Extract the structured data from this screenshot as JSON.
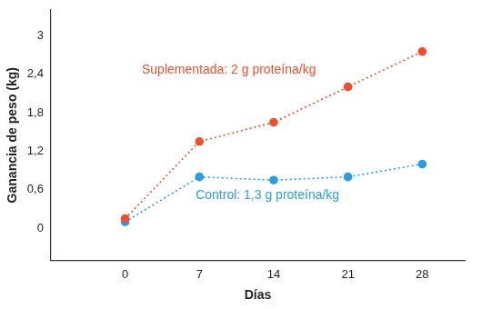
{
  "chart_data": {
    "type": "line",
    "x_label": "Días",
    "y_label": "Ganancia de peso (kg)",
    "x": [
      0,
      7,
      14,
      21,
      28
    ],
    "series": [
      {
        "name": "Suplementada: 2 g proteína/kg",
        "color": "#f0502d",
        "marker": "circle",
        "line_style": "dotted",
        "values": [
          0.15,
          1.35,
          1.65,
          2.2,
          2.75
        ]
      },
      {
        "name": "Control: 1,3 g proteína/kg",
        "color": "#2a9de0",
        "marker": "circle",
        "line_style": "dotted",
        "values": [
          0.1,
          0.8,
          0.75,
          0.8,
          1.0
        ]
      }
    ],
    "xlim": [
      -7,
      32
    ],
    "xticks": [
      0,
      7,
      14,
      21,
      28
    ],
    "ylim": [
      -0.5,
      3.4
    ],
    "yticks": [
      0,
      {
        "value": 0.6,
        "label": "0,6"
      },
      {
        "value": 1.2,
        "label": "1,2"
      },
      {
        "value": 1.8,
        "label": "1,8"
      },
      {
        "value": 2.4,
        "label": "2,4"
      },
      3
    ],
    "grid": false
  }
}
